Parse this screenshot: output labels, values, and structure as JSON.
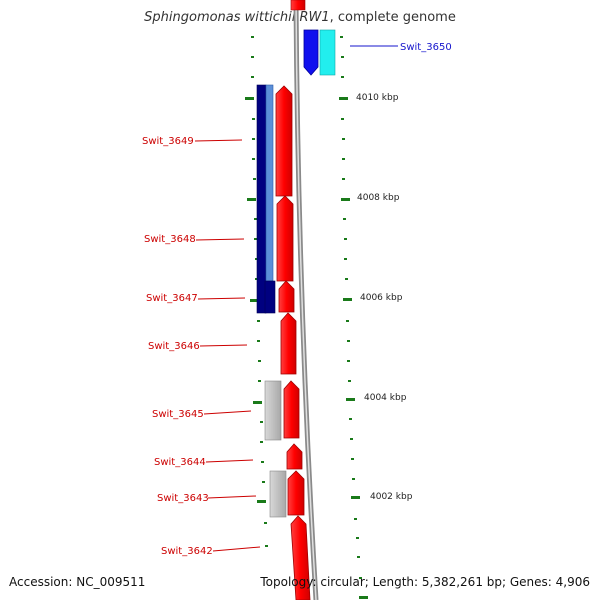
{
  "title": {
    "organism": "Sphingomonas wittichii RW1",
    "suffix": ", complete genome"
  },
  "footer": {
    "accession": "Accession: NC_009511",
    "topology": "Topology: circular; Length: 5,382,261 bp; Genes: 4,906"
  },
  "kbp_labels": [
    {
      "text": "4010 kbp",
      "value": 4010
    },
    {
      "text": "4008 kbp",
      "value": 4008
    },
    {
      "text": "4006 kbp",
      "value": 4006
    },
    {
      "text": "4004 kbp",
      "value": 4004
    },
    {
      "text": "4002 kbp",
      "value": 4002
    }
  ],
  "genes": [
    {
      "id": "Swit_3650",
      "color": "#1515cc"
    },
    {
      "id": "Swit_3649",
      "color": "#cc0000"
    },
    {
      "id": "Swit_3648",
      "color": "#cc0000"
    },
    {
      "id": "Swit_3647",
      "color": "#cc0000"
    },
    {
      "id": "Swit_3646",
      "color": "#cc0000"
    },
    {
      "id": "Swit_3645",
      "color": "#cc0000"
    },
    {
      "id": "Swit_3644",
      "color": "#cc0000"
    },
    {
      "id": "Swit_3643",
      "color": "#cc0000"
    },
    {
      "id": "Swit_3642",
      "color": "#cc0000"
    }
  ],
  "colors": {
    "forward_cds": "#ff0000",
    "reverse_cds": "#1010ee",
    "reverse_cds_light": "#22eeee",
    "dark_feature": "#000080",
    "light_feature": "#5b8fd8",
    "grey_feature": "#c0c0c0",
    "backbone": "#999999",
    "tick": "#1a7a1a"
  }
}
